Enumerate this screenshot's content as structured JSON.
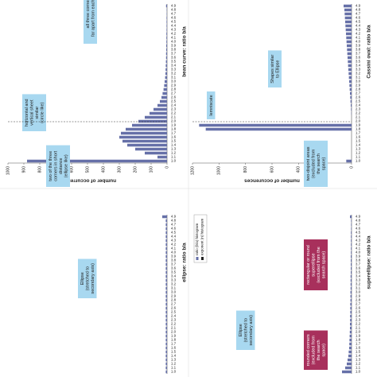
{
  "chart_data": [
    {
      "type": "bar",
      "title": "bean curve: ratio b/a",
      "ylabel": "number of occurrences",
      "color": "#6670a8",
      "categories": [
        "1.0",
        "1.1",
        "1.2",
        "1.3",
        "1.4",
        "1.5",
        "1.6",
        "1.7",
        "1.8",
        "1.9",
        "2.0",
        "2.1",
        "2.2",
        "2.3",
        "2.4",
        "2.5",
        "2.6",
        "2.7",
        "2.8",
        "2.9",
        "3.0",
        "3.1",
        "3.2",
        "3.3",
        "3.4",
        "3.5",
        "3.6",
        "3.7",
        "3.8",
        "3.9",
        "4.0",
        "4.1",
        "4.2",
        "4.3",
        "4.4",
        "4.5",
        "4.6",
        "4.7",
        "4.8",
        "4.9"
      ],
      "values": [
        880,
        60,
        140,
        200,
        250,
        280,
        300,
        290,
        260,
        220,
        180,
        140,
        110,
        85,
        60,
        45,
        35,
        28,
        22,
        18,
        15,
        12,
        10,
        9,
        8,
        7,
        6,
        6,
        5,
        5,
        4,
        4,
        4,
        3,
        3,
        3,
        3,
        2,
        2,
        6
      ],
      "ylim": [
        0,
        1000
      ],
      "yticks": [
        0,
        100,
        200,
        300,
        400,
        500,
        600,
        700,
        800,
        900,
        1000
      ],
      "annotations": [
        [
          "horizontal and",
          "vertical sheet",
          "similar",
          "(circle like)"
        ],
        [
          "two of the three",
          "corners in short",
          "distance",
          "(ellipse like)"
        ],
        [
          "all three corners",
          "far apart from each other"
        ]
      ]
    },
    {
      "type": "bar",
      "title": "Cassini oval: ratio b/a",
      "ylabel": "number of occurences",
      "color": "#6670a8",
      "categories": [
        "1.0",
        "1.1",
        "1.2",
        "1.3",
        "1.4",
        "1.5",
        "1.6",
        "1.7",
        "1.8",
        "1.9",
        "2.0",
        "2.1",
        "2.2",
        "2.3",
        "2.4",
        "2.5",
        "2.6",
        "2.7",
        "2.8",
        "2.9",
        "3.0",
        "3.1",
        "3.2",
        "3.3",
        "3.4",
        "3.5",
        "3.6",
        "3.7",
        "3.8",
        "3.9",
        "4.0",
        "4.1",
        "4.2",
        "4.3",
        "4.4",
        "4.5",
        "4.6",
        "4.7",
        "4.8",
        "4.9"
      ],
      "values": [
        40,
        0,
        0,
        0,
        0,
        0,
        0,
        0,
        1100,
        1150,
        0,
        0,
        2,
        4,
        6,
        8,
        10,
        12,
        14,
        16,
        18,
        20,
        22,
        24,
        26,
        28,
        30,
        32,
        34,
        36,
        38,
        40,
        42,
        44,
        46,
        48,
        50,
        52,
        54,
        60
      ],
      "ylim": [
        0,
        1200
      ],
      "yticks": [
        0,
        200,
        400,
        600,
        800,
        1000,
        1200
      ],
      "annotations": [
        [
          "two-disjoint areas",
          "(excluded from",
          "the search",
          "space)"
        ],
        [
          "lemniscate"
        ],
        [
          "Shapes similar",
          "to Ellipse"
        ]
      ]
    },
    {
      "type": "bar",
      "title": "ellipse: ratio b/a",
      "color": "#6670a8",
      "categories": [
        "1.0",
        "1.1",
        "1.2",
        "1.3",
        "1.4",
        "1.5",
        "1.6",
        "1.7",
        "1.8",
        "1.9",
        "2.0",
        "2.1",
        "2.2",
        "2.3",
        "2.4",
        "2.5",
        "2.6",
        "2.7",
        "2.8",
        "2.9",
        "3.0",
        "3.1",
        "3.2",
        "3.3",
        "3.4",
        "3.5",
        "3.6",
        "3.7",
        "3.8",
        "3.9",
        "4.0",
        "4.1",
        "4.2",
        "4.3",
        "4.4",
        "4.5",
        "4.6",
        "4.7",
        "4.8",
        "4.9"
      ],
      "values": [
        8,
        8,
        8,
        8,
        8,
        8,
        8,
        8,
        8,
        8,
        8,
        8,
        8,
        8,
        8,
        8,
        8,
        8,
        8,
        8,
        8,
        8,
        8,
        8,
        8,
        8,
        8,
        8,
        8,
        8,
        8,
        8,
        8,
        8,
        8,
        8,
        8,
        8,
        8,
        30
      ],
      "ylim": [
        0,
        1000
      ],
      "annotations": [
        [
          "Ellipse",
          "(stretched to",
          "secondary axis)"
        ]
      ]
    },
    {
      "type": "bar",
      "title": "superellipse: ratio b/a",
      "color": "#6670a8",
      "categories": [
        "1.0",
        "1.1",
        "1.2",
        "1.3",
        "1.4",
        "1.5",
        "1.6",
        "1.7",
        "1.8",
        "1.9",
        "2.0",
        "2.1",
        "2.2",
        "2.3",
        "2.4",
        "2.5",
        "2.6",
        "2.7",
        "2.8",
        "2.9",
        "3.0",
        "3.1",
        "3.2",
        "3.3",
        "3.4",
        "3.5",
        "3.6",
        "3.7",
        "3.8",
        "3.9",
        "4.0",
        "4.1",
        "4.2",
        "4.3",
        "4.4",
        "4.5",
        "4.6",
        "4.7",
        "4.8",
        "4.9"
      ],
      "values": [
        60,
        40,
        30,
        25,
        20,
        18,
        15,
        14,
        13,
        12,
        11,
        10,
        10,
        9,
        9,
        8,
        8,
        8,
        7,
        7,
        7,
        6,
        6,
        6,
        6,
        5,
        5,
        5,
        5,
        5,
        4,
        4,
        4,
        4,
        4,
        4,
        3,
        3,
        3,
        10
      ],
      "ylim": [
        0,
        1000
      ],
      "legend": [
        "ratio (b/a) histogram",
        "exponent (n) histogram"
      ],
      "annotations": [
        [
          "rounded corners",
          "(excluded from",
          "the search",
          "space)"
        ],
        [
          "Ellipse",
          "(stretched to",
          "secondary axis)"
        ],
        [
          "rectangular or round",
          "superellipse",
          "(excluded from the",
          "search space)"
        ]
      ]
    }
  ]
}
